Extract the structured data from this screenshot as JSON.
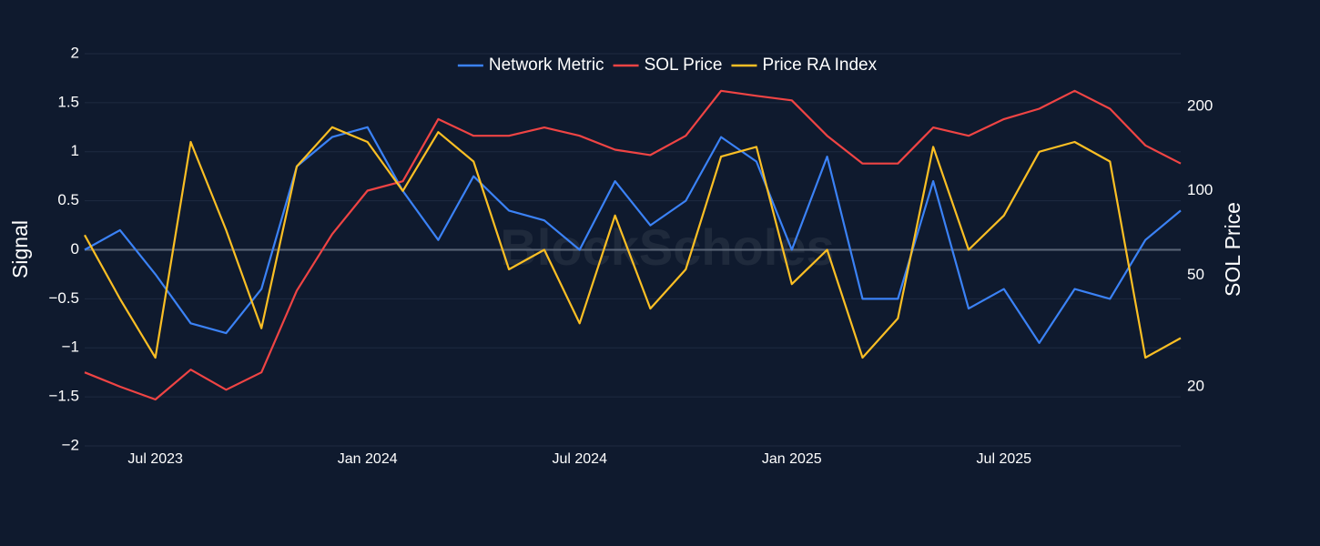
{
  "chart_data": {
    "type": "line",
    "watermark": "BlockScholes",
    "x": [
      "2023-05",
      "2023-06",
      "2023-07",
      "2023-08",
      "2023-09",
      "2023-10",
      "2023-11",
      "2023-12",
      "2024-01",
      "2024-02",
      "2024-03",
      "2024-04",
      "2024-05",
      "2024-06",
      "2024-07",
      "2024-08",
      "2024-09",
      "2024-10",
      "2024-11",
      "2024-12",
      "2025-01",
      "2025-02",
      "2025-03",
      "2025-04",
      "2025-05",
      "2025-06",
      "2025-07",
      "2025-08",
      "2025-09",
      "2025-10",
      "2025-11",
      "2025-12"
    ],
    "xlim": [
      "2023-05",
      "2025-12"
    ],
    "xticks": [
      {
        "value": "2023-07",
        "label": "Jul 2023"
      },
      {
        "value": "2024-01",
        "label": "Jan 2024"
      },
      {
        "value": "2024-07",
        "label": "Jul 2024"
      },
      {
        "value": "2025-01",
        "label": "Jan 2025"
      },
      {
        "value": "2025-07",
        "label": "Jul 2025"
      }
    ],
    "ylabel": "Signal",
    "ylim": [
      -2,
      2
    ],
    "yticks": [
      {
        "value": -2,
        "label": "−2"
      },
      {
        "value": -1.5,
        "label": "−1.5"
      },
      {
        "value": -1,
        "label": "−1"
      },
      {
        "value": -0.5,
        "label": "−0.5"
      },
      0,
      0.5,
      1,
      1.5,
      2
    ],
    "y2label": "SOL Price",
    "y2lim": [
      12.3,
      308
    ],
    "y2ticks": [
      20,
      50,
      100,
      200
    ],
    "y2scale": "log",
    "grid": true,
    "legend": "top",
    "series": [
      {
        "name": "Network Metric",
        "color": "#3b82f6",
        "axis": "y",
        "values": [
          0.0,
          0.2,
          -0.25,
          -0.75,
          -0.85,
          -0.4,
          0.85,
          1.15,
          1.25,
          0.6,
          0.1,
          0.75,
          0.4,
          0.3,
          0.0,
          0.7,
          0.25,
          0.5,
          1.15,
          0.9,
          0.0,
          0.95,
          -0.5,
          -0.5,
          0.7,
          -0.6,
          -0.4,
          -0.95,
          -0.4,
          -0.5,
          0.1,
          0.4
        ]
      },
      {
        "name": "SOL Price",
        "color": "#ef4444",
        "axis": "y2",
        "values": [
          22.5,
          20,
          18,
          23,
          19.5,
          22.5,
          44,
          70,
          100,
          108,
          180,
          157,
          157,
          168,
          157,
          140,
          134,
          157,
          227,
          218,
          210,
          157,
          125,
          125,
          168,
          157,
          180,
          196,
          227,
          196,
          145,
          125
        ]
      },
      {
        "name": "Price RA Index",
        "color": "#fbbf24",
        "axis": "y",
        "values": [
          0.15,
          -0.5,
          -1.1,
          1.1,
          0.2,
          -0.8,
          0.85,
          1.25,
          1.1,
          0.6,
          1.2,
          0.9,
          -0.2,
          0.0,
          -0.75,
          0.35,
          -0.6,
          -0.2,
          0.95,
          1.05,
          -0.35,
          0.0,
          -1.1,
          -0.7,
          1.05,
          0.0,
          0.35,
          1.0,
          1.1,
          0.9,
          -1.1,
          -0.9
        ]
      }
    ]
  }
}
